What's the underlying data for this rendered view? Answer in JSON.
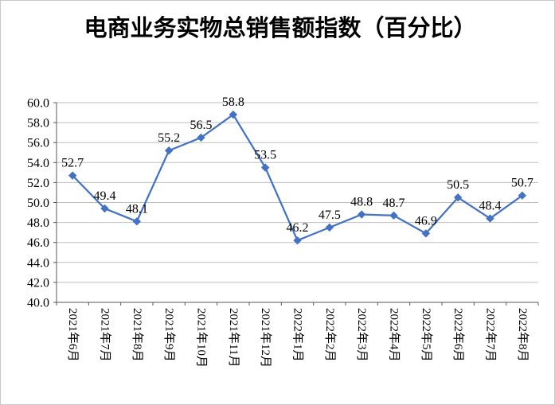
{
  "chart_data": {
    "type": "line",
    "title": "电商业务实物总销售额指数（百分比）",
    "categories": [
      "2021年6月",
      "2021年7月",
      "2021年8月",
      "2021年9月",
      "2021年10月",
      "2021年11月",
      "2021年12月",
      "2022年1月",
      "2022年2月",
      "2022年3月",
      "2022年4月",
      "2022年5月",
      "2022年6月",
      "2022年7月",
      "2022年8月"
    ],
    "values": [
      52.7,
      49.4,
      48.1,
      55.2,
      56.5,
      58.8,
      53.5,
      46.2,
      47.5,
      48.8,
      48.7,
      46.9,
      50.5,
      48.4,
      50.7
    ],
    "xlabel": "",
    "ylabel": "",
    "ylim": [
      40.0,
      60.0
    ],
    "ytick_step": 2.0,
    "ytick_format_decimals": 1,
    "grid": true,
    "legend": "none",
    "marker": "diamond",
    "data_labels_shown": true,
    "colors": {
      "line": "#4472C4",
      "marker": "#4472C4",
      "gridline": "#BFBFBF",
      "axis": "#595959",
      "text": "#000000",
      "background": "#FFFFFF",
      "border": "#C9C9C9"
    }
  }
}
